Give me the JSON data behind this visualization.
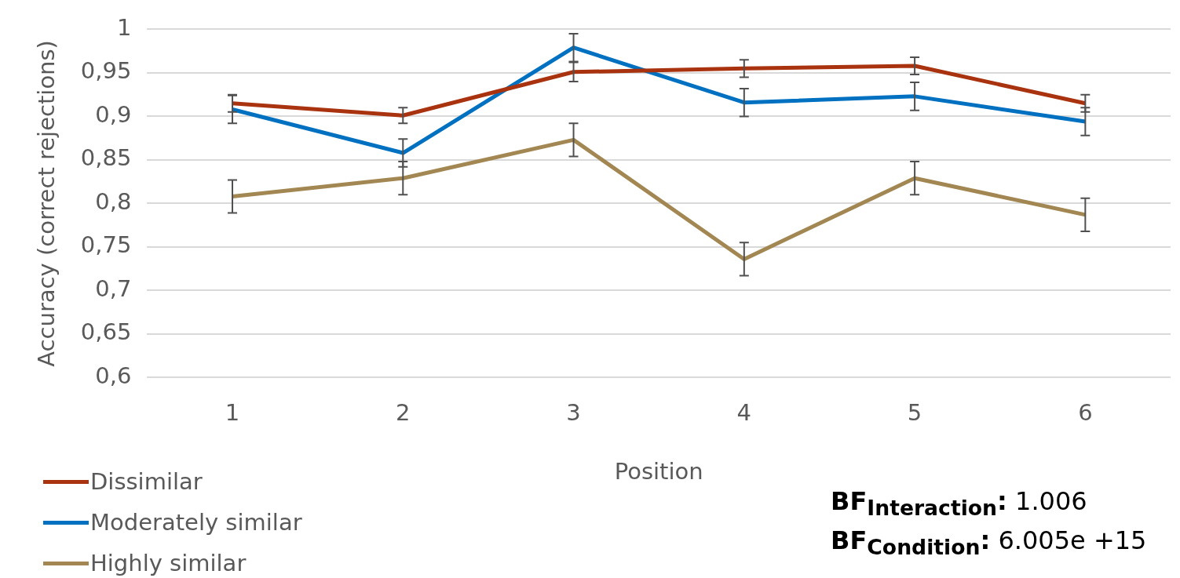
{
  "chart_data": {
    "type": "line",
    "xlabel": "Position",
    "ylabel": "Accuracy (correct rejections)",
    "categories": [
      "1",
      "2",
      "3",
      "4",
      "5",
      "6"
    ],
    "ylim": [
      0.6,
      1
    ],
    "yticks": [
      {
        "value": 0.6,
        "label": "0,6"
      },
      {
        "value": 0.65,
        "label": "0,65"
      },
      {
        "value": 0.7,
        "label": "0,7"
      },
      {
        "value": 0.75,
        "label": "0,75"
      },
      {
        "value": 0.8,
        "label": "0,8"
      },
      {
        "value": 0.85,
        "label": "0,85"
      },
      {
        "value": 0.9,
        "label": "0,9"
      },
      {
        "value": 0.95,
        "label": "0,95"
      },
      {
        "value": 1,
        "label": "1"
      }
    ],
    "grid": "y",
    "legend": "bottom left",
    "marker": "none",
    "line_style": "solid",
    "series": [
      {
        "name": "Dissimilar",
        "color": "#a9320f",
        "values": [
          0.915,
          0.901,
          0.951,
          0.955,
          0.958,
          0.915
        ],
        "errors": [
          0.01,
          0.009,
          0.011,
          0.01,
          0.01,
          0.01
        ]
      },
      {
        "name": "Moderately similar",
        "color": "#0070c0",
        "values": [
          0.908,
          0.858,
          0.979,
          0.916,
          0.923,
          0.894
        ],
        "errors": [
          0.016,
          0.016,
          0.016,
          0.016,
          0.016,
          0.016
        ]
      },
      {
        "name": "Highly similar",
        "color": "#a38752",
        "values": [
          0.808,
          0.829,
          0.873,
          0.736,
          0.829,
          0.787
        ],
        "errors": [
          0.019,
          0.019,
          0.019,
          0.019,
          0.019,
          0.019
        ]
      }
    ],
    "annotations": [
      "BF$_{Interaction}$: 1.006",
      "BF$_{Condition}$: 6.005e +15"
    ]
  }
}
